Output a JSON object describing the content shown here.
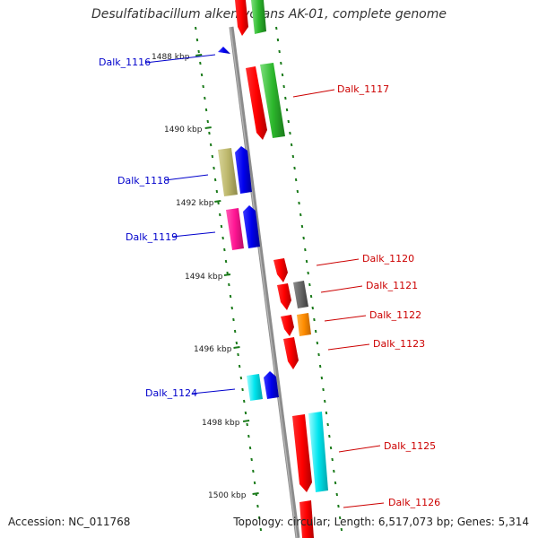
{
  "title": "Desulfatibacillum alkenivorans AK-01, complete genome",
  "accession": "Accession: NC_011768",
  "topology": "Topology: circular; Length: 6,517,073 bp; Genes: 5,314",
  "kbp_ticks": [
    "1488 kbp",
    "1490 kbp",
    "1492 kbp",
    "1494 kbp",
    "1496 kbp",
    "1498 kbp",
    "1500 kbp"
  ],
  "genes": [
    {
      "label": "Dalk_1116",
      "color": "#0000cc"
    },
    {
      "label": "Dalk_1117",
      "color": "#cc0000"
    },
    {
      "label": "Dalk_1118",
      "color": "#0000cc"
    },
    {
      "label": "Dalk_1119",
      "color": "#0000cc"
    },
    {
      "label": "Dalk_1120",
      "color": "#cc0000"
    },
    {
      "label": "Dalk_1121",
      "color": "#cc0000"
    },
    {
      "label": "Dalk_1122",
      "color": "#cc0000"
    },
    {
      "label": "Dalk_1123",
      "color": "#cc0000"
    },
    {
      "label": "Dalk_1124",
      "color": "#0000cc"
    },
    {
      "label": "Dalk_1125",
      "color": "#cc0000"
    },
    {
      "label": "Dalk_1126",
      "color": "#cc0000"
    }
  ]
}
